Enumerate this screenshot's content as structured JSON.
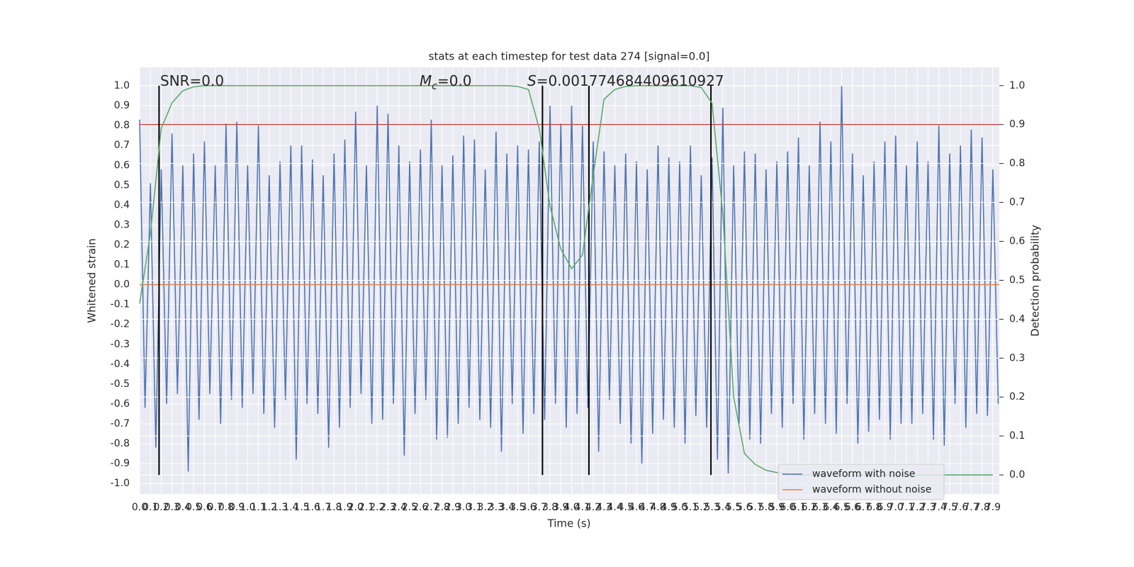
{
  "chart_data": {
    "type": "line",
    "title": "stats at each timestep for test data 274 [signal=0.0]",
    "xlabel": "Time (s)",
    "ylabel": "Whitened strain",
    "y2label": "Detection probability",
    "xlim": [
      0,
      7.96
    ],
    "ylim": [
      -1.053,
      1.093
    ],
    "y2lim": [
      -0.049,
      1.047
    ],
    "grid": true,
    "background": "#eaeaf2",
    "legend_loc": "lower right",
    "xticks": [
      {
        "value": 0,
        "label": "0.0"
      },
      0.1,
      0.2,
      0.3,
      0.4,
      0.5,
      0.6,
      0.7,
      0.8,
      0.9,
      {
        "value": 1,
        "label": "1.0"
      },
      1.1,
      1.2,
      1.3,
      1.4,
      1.5,
      1.6,
      1.7,
      1.8,
      1.9,
      {
        "value": 2,
        "label": "2.0"
      },
      2.1,
      2.2,
      2.3,
      2.4,
      2.5,
      2.6,
      2.7,
      2.8,
      2.9,
      {
        "value": 3,
        "label": "3.0"
      },
      3.1,
      3.2,
      3.3,
      3.4,
      3.5,
      3.6,
      3.7,
      3.8,
      3.9,
      {
        "value": 4,
        "label": "4.0"
      },
      4.1,
      4.2,
      4.3,
      4.4,
      4.5,
      4.6,
      4.7,
      4.8,
      4.9,
      {
        "value": 5,
        "label": "5.0"
      },
      5.1,
      5.2,
      5.3,
      5.4,
      5.5,
      5.6,
      5.7,
      5.8,
      5.9,
      {
        "value": 6,
        "label": "6.0"
      },
      6.1,
      6.2,
      6.3,
      6.4,
      6.5,
      6.6,
      6.7,
      6.8,
      6.9,
      {
        "value": 7,
        "label": "7.0"
      },
      7.1,
      7.2,
      7.3,
      7.4,
      7.5,
      7.6,
      7.7,
      7.8,
      7.9
    ],
    "yticks": [
      {
        "value": -1,
        "label": "-1.0"
      },
      -0.9,
      -0.8,
      -0.7,
      -0.6,
      -0.5,
      -0.4,
      -0.3,
      -0.2,
      -0.1,
      {
        "value": 0,
        "label": "0.0"
      },
      0.1,
      0.2,
      0.3,
      0.4,
      0.5,
      0.6,
      0.7,
      0.8,
      0.9,
      {
        "value": 1,
        "label": "1.0"
      }
    ],
    "y2ticks": [
      {
        "value": 0,
        "label": "0.0"
      },
      0.1,
      0.2,
      0.3,
      0.4,
      0.5,
      0.6,
      0.7,
      0.8,
      0.9,
      {
        "value": 1,
        "label": "1.0"
      }
    ],
    "series": [
      {
        "name": "waveform with noise",
        "color": "#4c72b0",
        "x": [
          0,
          0.05,
          0.1,
          0.15,
          0.2,
          0.25,
          0.3,
          0.35,
          0.4,
          0.45,
          0.5,
          0.55,
          0.6,
          0.65,
          0.7,
          0.75,
          0.8,
          0.85,
          0.9,
          0.95,
          1,
          1.05,
          1.1,
          1.15,
          1.2,
          1.25,
          1.3,
          1.35,
          1.4,
          1.45,
          1.5,
          1.55,
          1.6,
          1.65,
          1.7,
          1.75,
          1.8,
          1.85,
          1.9,
          1.95,
          2,
          2.05,
          2.1,
          2.15,
          2.2,
          2.25,
          2.3,
          2.35,
          2.4,
          2.45,
          2.5,
          2.55,
          2.6,
          2.65,
          2.7,
          2.75,
          2.8,
          2.85,
          2.9,
          2.95,
          3,
          3.05,
          3.1,
          3.15,
          3.2,
          3.25,
          3.3,
          3.35,
          3.4,
          3.45,
          3.5,
          3.55,
          3.6,
          3.65,
          3.7,
          3.75,
          3.8,
          3.85,
          3.9,
          3.95,
          4,
          4.05,
          4.1,
          4.15,
          4.2,
          4.25,
          4.3,
          4.35,
          4.4,
          4.45,
          4.5,
          4.55,
          4.6,
          4.65,
          4.7,
          4.75,
          4.8,
          4.85,
          4.9,
          4.95,
          5,
          5.05,
          5.1,
          5.15,
          5.2,
          5.25,
          5.3,
          5.35,
          5.4,
          5.45,
          5.5,
          5.55,
          5.6,
          5.65,
          5.7,
          5.75,
          5.8,
          5.85,
          5.9,
          5.95,
          6,
          6.05,
          6.1,
          6.15,
          6.2,
          6.25,
          6.3,
          6.35,
          6.4,
          6.45,
          6.5,
          6.55,
          6.6,
          6.65,
          6.7,
          6.75,
          6.8,
          6.85,
          6.9,
          6.95,
          7,
          7.05,
          7.1,
          7.15,
          7.2,
          7.25,
          7.3,
          7.35,
          7.4,
          7.45,
          7.5,
          7.55,
          7.6,
          7.65,
          7.7,
          7.75,
          7.8,
          7.85,
          7.9,
          7.95
        ],
        "values": [
          0.83,
          -0.62,
          0.51,
          -0.82,
          0.58,
          -0.6,
          0.76,
          -0.55,
          0.6,
          -0.94,
          0.66,
          -0.68,
          0.72,
          -0.55,
          0.6,
          -0.7,
          0.81,
          -0.58,
          0.82,
          -0.62,
          0.6,
          -0.55,
          0.8,
          -0.65,
          0.55,
          -0.72,
          0.62,
          -0.58,
          0.7,
          -0.88,
          0.7,
          -0.6,
          0.63,
          -0.65,
          0.55,
          -0.82,
          0.66,
          -0.72,
          0.73,
          -0.62,
          0.87,
          -0.55,
          0.6,
          -0.7,
          0.9,
          -0.68,
          0.86,
          -0.6,
          0.7,
          -0.86,
          0.62,
          -0.65,
          0.68,
          -0.58,
          0.83,
          -0.78,
          0.6,
          -0.77,
          0.65,
          -0.7,
          0.75,
          -0.62,
          0.73,
          -0.68,
          0.58,
          -0.72,
          0.77,
          -0.84,
          0.66,
          -0.6,
          0.7,
          -0.75,
          0.68,
          -0.65,
          0.72,
          -0.68,
          0.9,
          -0.6,
          0.81,
          -0.72,
          0.9,
          -0.65,
          0.8,
          -0.62,
          0.72,
          -0.84,
          0.67,
          -0.58,
          0.6,
          -0.7,
          0.66,
          -0.8,
          0.62,
          -0.9,
          0.58,
          -0.75,
          0.7,
          -0.68,
          0.64,
          -0.72,
          0.62,
          -0.8,
          0.7,
          -0.66,
          0.55,
          -0.72,
          0.64,
          -0.88,
          0.89,
          -0.95,
          0.6,
          -0.7,
          0.67,
          -0.78,
          0.66,
          -0.8,
          0.58,
          -0.65,
          0.62,
          -0.72,
          0.67,
          -0.6,
          0.74,
          -0.78,
          0.6,
          -0.65,
          0.82,
          -0.7,
          0.72,
          -0.75,
          1.0,
          -0.6,
          0.66,
          -0.8,
          0.55,
          -0.74,
          0.62,
          -0.68,
          0.72,
          -0.78,
          0.75,
          -0.7,
          0.6,
          -0.7,
          0.72,
          -0.65,
          0.62,
          -0.78,
          0.8,
          -0.81,
          0.66,
          -0.6,
          0.7,
          -0.72,
          0.78,
          -0.65,
          0.74,
          -0.66,
          0.58,
          -0.6
        ]
      },
      {
        "name": "waveform without noise",
        "color": "#dd8452",
        "x": [
          0,
          7.96
        ],
        "values": [
          0,
          0
        ]
      },
      {
        "color": "#55a868",
        "axis": "y2",
        "x": [
          0,
          0.1,
          0.2,
          0.3,
          0.4,
          0.5,
          0.6,
          0.7,
          0.8,
          0.9,
          1,
          1.1,
          1.2,
          1.3,
          1.4,
          1.5,
          1.6,
          1.7,
          1.8,
          1.9,
          2,
          2.1,
          2.2,
          2.3,
          2.4,
          2.5,
          2.6,
          2.7,
          2.8,
          2.9,
          3,
          3.1,
          3.2,
          3.3,
          3.4,
          3.5,
          3.6,
          3.7,
          3.8,
          3.9,
          4,
          4.1,
          4.2,
          4.3,
          4.4,
          4.5,
          4.6,
          4.7,
          4.8,
          4.9,
          5,
          5.1,
          5.2,
          5.3,
          5.4,
          5.5,
          5.6,
          5.7,
          5.8,
          5.9,
          6,
          6.1,
          6.2,
          6.3,
          6.4,
          6.5,
          6.6,
          6.7,
          6.8,
          6.9,
          7,
          7.1,
          7.2,
          7.3,
          7.4,
          7.5,
          7.6,
          7.7,
          7.8,
          7.9
        ],
        "values": [
          0.44,
          0.62,
          0.89,
          0.956,
          0.987,
          0.997,
          1,
          1,
          1,
          1,
          1,
          1,
          1,
          1,
          1,
          1,
          1,
          1,
          1,
          1,
          1,
          1,
          1,
          1,
          1,
          1,
          1,
          1,
          1,
          1,
          1,
          1,
          1,
          1,
          1,
          0.998,
          0.99,
          0.89,
          0.69,
          0.58,
          0.53,
          0.565,
          0.77,
          0.965,
          0.99,
          0.998,
          1,
          1,
          1,
          1,
          1,
          1,
          0.995,
          0.955,
          0.67,
          0.2,
          0.055,
          0.027,
          0.012,
          0.006,
          0.003,
          0,
          0,
          0,
          0,
          0,
          0,
          0,
          0,
          0,
          0,
          0,
          0,
          0,
          0,
          0,
          0,
          0,
          0,
          0
        ]
      }
    ],
    "threshold": {
      "value": 0.9,
      "axis": "y2",
      "color": "#c44e52"
    },
    "vlines": [
      0.18,
      3.73,
      4.16,
      5.29
    ],
    "vline_color": "#000000",
    "annotations": [
      {
        "text": "SNR=0.0"
      },
      {
        "symbol": "M",
        "subscript": "c",
        "text": "=0.0"
      },
      {
        "symbol": "S",
        "text": "=0.001774684409610927"
      }
    ]
  }
}
